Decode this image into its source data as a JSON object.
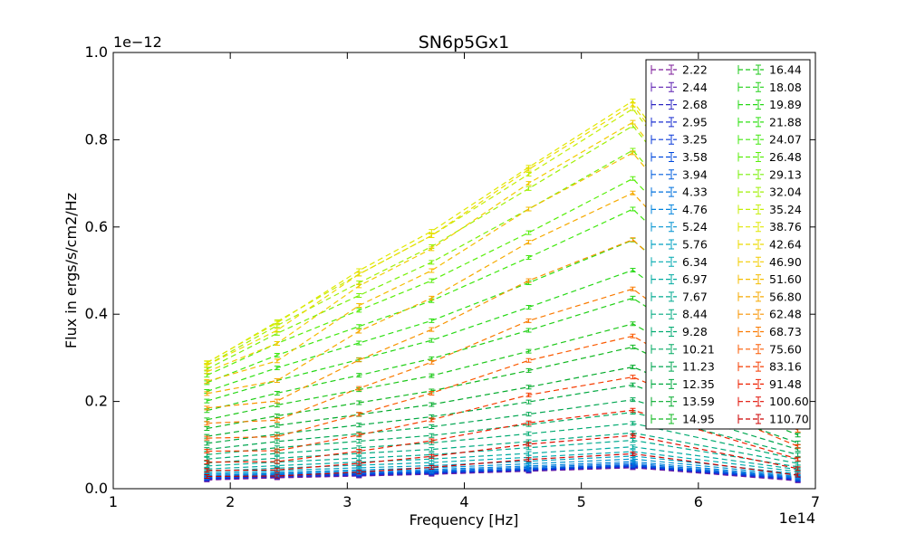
{
  "chart_data": {
    "type": "line",
    "title": "SN6p5Gx1",
    "xlabel": "Frequency [Hz]",
    "ylabel": "Flux in ergs/s/cm2/Hz",
    "x_scale_label": "1e14",
    "y_scale_label": "1e−12",
    "xlim": [
      1,
      7
    ],
    "ylim": [
      0,
      1.0
    ],
    "x_ticks": [
      "1",
      "2",
      "3",
      "4",
      "5",
      "6",
      "7"
    ],
    "y_ticks": [
      "0.0",
      "0.2",
      "0.4",
      "0.6",
      "0.8",
      "1.0"
    ],
    "grid": false,
    "legend_position": "upper-right",
    "line_style": "dashed",
    "x": [
      1.8,
      2.4,
      3.1,
      3.72,
      4.55,
      5.44,
      6.85
    ],
    "series": [
      {
        "name": "2.22",
        "color": "#7d1c9a",
        "values": [
          0.02,
          0.025,
          0.029,
          0.033,
          0.04,
          0.048,
          0.018
        ]
      },
      {
        "name": "2.44",
        "color": "#5c1fb0",
        "values": [
          0.021,
          0.026,
          0.03,
          0.034,
          0.041,
          0.049,
          0.019
        ]
      },
      {
        "name": "2.68",
        "color": "#2c26c2",
        "values": [
          0.022,
          0.027,
          0.031,
          0.035,
          0.042,
          0.05,
          0.02
        ]
      },
      {
        "name": "2.95",
        "color": "#1a2fd0",
        "values": [
          0.023,
          0.028,
          0.032,
          0.036,
          0.043,
          0.051,
          0.021
        ]
      },
      {
        "name": "3.25",
        "color": "#0a3ad8",
        "values": [
          0.024,
          0.029,
          0.033,
          0.037,
          0.044,
          0.052,
          0.022
        ]
      },
      {
        "name": "3.58",
        "color": "#0049dd",
        "values": [
          0.025,
          0.03,
          0.034,
          0.038,
          0.045,
          0.053,
          0.023
        ]
      },
      {
        "name": "3.94",
        "color": "#005ddd",
        "values": [
          0.026,
          0.031,
          0.035,
          0.039,
          0.046,
          0.055,
          0.024
        ]
      },
      {
        "name": "4.33",
        "color": "#0070dd",
        "values": [
          0.028,
          0.033,
          0.037,
          0.041,
          0.049,
          0.058,
          0.026
        ]
      },
      {
        "name": "4.76",
        "color": "#0083dd",
        "values": [
          0.03,
          0.035,
          0.04,
          0.044,
          0.052,
          0.062,
          0.028
        ]
      },
      {
        "name": "5.24",
        "color": "#0092d0",
        "values": [
          0.033,
          0.038,
          0.043,
          0.048,
          0.057,
          0.068,
          0.031
        ]
      },
      {
        "name": "5.76",
        "color": "#00a0c0",
        "values": [
          0.036,
          0.042,
          0.048,
          0.053,
          0.063,
          0.075,
          0.034
        ]
      },
      {
        "name": "6.34",
        "color": "#00a9b0",
        "values": [
          0.04,
          0.047,
          0.054,
          0.06,
          0.072,
          0.085,
          0.039
        ]
      },
      {
        "name": "6.97",
        "color": "#00aaa0",
        "values": [
          0.045,
          0.053,
          0.061,
          0.068,
          0.081,
          0.096,
          0.044
        ]
      },
      {
        "name": "7.67",
        "color": "#00aa90",
        "values": [
          0.052,
          0.061,
          0.07,
          0.078,
          0.094,
          0.111,
          0.05
        ]
      },
      {
        "name": "8.44",
        "color": "#00aa80",
        "values": [
          0.059,
          0.07,
          0.081,
          0.09,
          0.108,
          0.128,
          0.058
        ]
      },
      {
        "name": "9.28",
        "color": "#00aa70",
        "values": [
          0.068,
          0.081,
          0.094,
          0.105,
          0.126,
          0.15,
          0.067
        ]
      },
      {
        "name": "10.21",
        "color": "#00a960",
        "values": [
          0.078,
          0.094,
          0.109,
          0.122,
          0.147,
          0.175,
          0.078
        ]
      },
      {
        "name": "11.23",
        "color": "#00a650",
        "values": [
          0.09,
          0.108,
          0.126,
          0.142,
          0.171,
          0.204,
          0.09
        ]
      },
      {
        "name": "12.35",
        "color": "#00a840",
        "values": [
          0.104,
          0.125,
          0.146,
          0.165,
          0.199,
          0.238,
          0.105
        ]
      },
      {
        "name": "13.59",
        "color": "#00aa2a",
        "values": [
          0.12,
          0.145,
          0.17,
          0.193,
          0.233,
          0.279,
          0.123
        ]
      },
      {
        "name": "14.95",
        "color": "#10b820",
        "values": [
          0.138,
          0.167,
          0.197,
          0.224,
          0.271,
          0.325,
          0.143
        ]
      },
      {
        "name": "16.44",
        "color": "#1ec81a",
        "values": [
          0.158,
          0.192,
          0.227,
          0.259,
          0.315,
          0.378,
          0.166
        ]
      },
      {
        "name": "18.08",
        "color": "#22d018",
        "values": [
          0.179,
          0.219,
          0.26,
          0.298,
          0.363,
          0.437,
          0.192
        ]
      },
      {
        "name": "19.89",
        "color": "#26d816",
        "values": [
          0.201,
          0.248,
          0.296,
          0.34,
          0.416,
          0.501,
          0.22
        ]
      },
      {
        "name": "21.88",
        "color": "#2ee012",
        "values": [
          0.223,
          0.277,
          0.334,
          0.385,
          0.472,
          0.57,
          0.25
        ]
      },
      {
        "name": "24.07",
        "color": "#40e80e",
        "values": [
          0.243,
          0.306,
          0.372,
          0.431,
          0.53,
          0.641,
          0.281
        ]
      },
      {
        "name": "26.48",
        "color": "#58ee0a",
        "values": [
          0.26,
          0.333,
          0.409,
          0.477,
          0.587,
          0.711,
          0.311
        ]
      },
      {
        "name": "29.13",
        "color": "#78f008",
        "values": [
          0.274,
          0.356,
          0.443,
          0.519,
          0.641,
          0.776,
          0.339
        ]
      },
      {
        "name": "32.04",
        "color": "#a0f006",
        "values": [
          0.283,
          0.374,
          0.472,
          0.555,
          0.688,
          0.832,
          0.362
        ]
      },
      {
        "name": "35.24",
        "color": "#c4ee04",
        "values": [
          0.288,
          0.383,
          0.492,
          0.58,
          0.721,
          0.871,
          0.376
        ]
      },
      {
        "name": "38.76",
        "color": "#e0e800",
        "values": [
          0.289,
          0.38,
          0.5,
          0.59,
          0.737,
          0.889,
          0.38
        ]
      },
      {
        "name": "42.64",
        "color": "#ecda00",
        "values": [
          0.283,
          0.363,
          0.492,
          0.58,
          0.732,
          0.88,
          0.372
        ]
      },
      {
        "name": "46.90",
        "color": "#f2cc00",
        "values": [
          0.268,
          0.333,
          0.465,
          0.55,
          0.7,
          0.84,
          0.35
        ]
      },
      {
        "name": "51.60",
        "color": "#f4bc00",
        "values": [
          0.246,
          0.293,
          0.42,
          0.5,
          0.641,
          0.77,
          0.315
        ]
      },
      {
        "name": "56.80",
        "color": "#f6aa00",
        "values": [
          0.218,
          0.248,
          0.361,
          0.437,
          0.565,
          0.678,
          0.272
        ]
      },
      {
        "name": "62.48",
        "color": "#f89400",
        "values": [
          0.185,
          0.201,
          0.295,
          0.365,
          0.477,
          0.571,
          0.225
        ]
      },
      {
        "name": "68.73",
        "color": "#fa7a00",
        "values": [
          0.15,
          0.157,
          0.23,
          0.29,
          0.385,
          0.458,
          0.178
        ]
      },
      {
        "name": "75.60",
        "color": "#fb5a00",
        "values": [
          0.116,
          0.119,
          0.171,
          0.219,
          0.294,
          0.35,
          0.134
        ]
      },
      {
        "name": "83.16",
        "color": "#f63c00",
        "values": [
          0.086,
          0.087,
          0.123,
          0.158,
          0.215,
          0.256,
          0.097
        ]
      },
      {
        "name": "91.48",
        "color": "#ee2000",
        "values": [
          0.061,
          0.062,
          0.086,
          0.11,
          0.151,
          0.18,
          0.068
        ]
      },
      {
        "name": "100.60",
        "color": "#e00c00",
        "values": [
          0.042,
          0.043,
          0.058,
          0.074,
          0.102,
          0.122,
          0.046
        ]
      },
      {
        "name": "110.70",
        "color": "#cc0000",
        "values": [
          0.028,
          0.029,
          0.038,
          0.049,
          0.067,
          0.08,
          0.031
        ]
      }
    ]
  }
}
